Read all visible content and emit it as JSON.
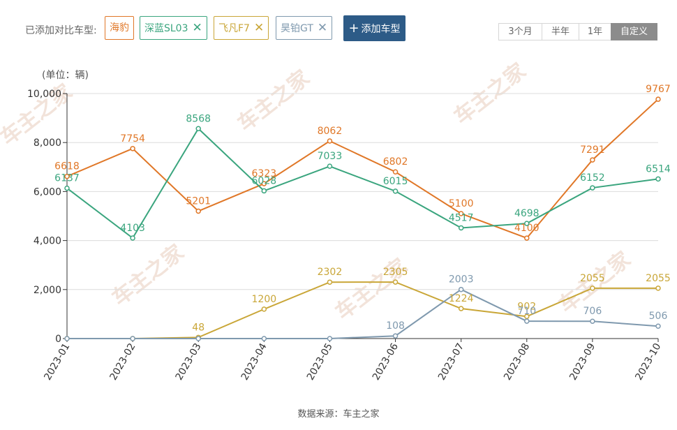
{
  "toolbar": {
    "compare_label": "已添加对比车型:",
    "chips": [
      {
        "label": "海豹",
        "color": "#e07727",
        "removable": false
      },
      {
        "label": "深蓝SL03",
        "color": "#3aa57e",
        "removable": true
      },
      {
        "label": "飞凡F7",
        "color": "#c9a637",
        "removable": true
      },
      {
        "label": "昊铂GT",
        "color": "#7f99ae",
        "removable": true
      }
    ],
    "remove_symbol": "✕",
    "add_symbol": "+",
    "add_label": "添加车型",
    "ranges": [
      {
        "label": "3个月",
        "active": false
      },
      {
        "label": "半年",
        "active": false
      },
      {
        "label": "1年",
        "active": false
      },
      {
        "label": "自定义",
        "active": true
      }
    ]
  },
  "watermark_text": "车主之家",
  "footer": "数据来源：车主之家",
  "chart_data": {
    "type": "line",
    "unit_label": "(单位：辆)",
    "categories": [
      "2023-01",
      "2023-02",
      "2023-03",
      "2023-04",
      "2023-05",
      "2023-06",
      "2023-07",
      "2023-08",
      "2023-09",
      "2023-10"
    ],
    "ylim": [
      0,
      10000
    ],
    "yticks": [
      0,
      2000,
      4000,
      6000,
      8000,
      10000
    ],
    "ytick_labels": [
      "0",
      "2,000",
      "4,000",
      "6,000",
      "8,000",
      "10,000"
    ],
    "grid": true,
    "series": [
      {
        "name": "海豹",
        "color": "#e07727",
        "values": [
          6618,
          7754,
          5201,
          6323,
          8062,
          6802,
          5100,
          4100,
          7291,
          9767
        ],
        "labels": [
          "6618",
          "7754",
          "5201",
          "6323",
          "8062",
          "6802",
          "5100",
          "4100",
          "7291",
          "9767"
        ]
      },
      {
        "name": "深蓝SL03",
        "color": "#3aa57e",
        "values": [
          6137,
          4103,
          8568,
          6028,
          7033,
          6015,
          4517,
          4698,
          6152,
          6514
        ],
        "labels": [
          "6137",
          "4103",
          "8568",
          "6028",
          "7033",
          "6015",
          "4517",
          "4698",
          "6152",
          "6514"
        ]
      },
      {
        "name": "飞凡F7",
        "color": "#c9a637",
        "values": [
          0,
          0,
          48,
          1200,
          2302,
          2305,
          1224,
          902,
          2055,
          2055
        ],
        "labels": [
          "",
          "",
          "48",
          "1200",
          "2302",
          "2305",
          "1224",
          "902",
          "2055",
          "2055"
        ]
      },
      {
        "name": "昊铂GT",
        "color": "#7f99ae",
        "values": [
          0,
          0,
          0,
          0,
          0,
          108,
          2003,
          710,
          706,
          506
        ],
        "labels": [
          "",
          "",
          "",
          "",
          "",
          "108",
          "2003",
          "710",
          "706",
          "506"
        ]
      }
    ]
  }
}
